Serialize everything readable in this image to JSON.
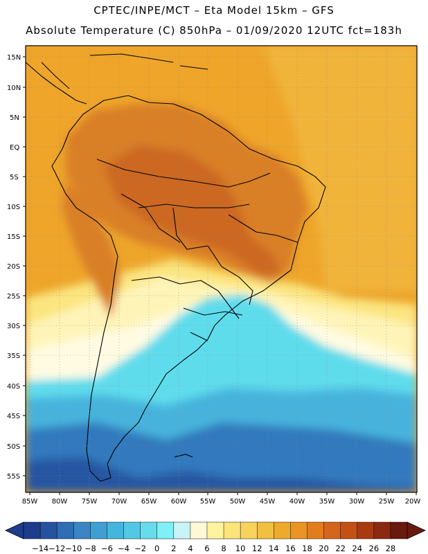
{
  "header": {
    "line1": "CPTEC/INPE/MCT –  Eta Model 15km – GFS",
    "line2": "Absolute Temperature (C) 850hPa – 01/09/2020 12UTC fct=183h"
  },
  "axes": {
    "lat_labels": [
      "15N",
      "10N",
      "5N",
      "EQ",
      "5S",
      "10S",
      "15S",
      "20S",
      "25S",
      "30S",
      "35S",
      "40S",
      "45S",
      "50S",
      "55S"
    ],
    "lon_labels": [
      "85W",
      "80W",
      "75W",
      "70W",
      "65W",
      "60W",
      "55W",
      "50W",
      "45W",
      "40W",
      "35W",
      "30W",
      "25W",
      "20W"
    ]
  },
  "colorbar": {
    "labels": [
      "-14",
      "-12",
      "-10",
      "-8",
      "-6",
      "-4",
      "-2",
      "0",
      "2",
      "4",
      "6",
      "8",
      "10",
      "12",
      "14",
      "16",
      "18",
      "20",
      "22",
      "24",
      "26",
      "28"
    ],
    "colors": [
      "#1e3c8a",
      "#2553a0",
      "#2f6db4",
      "#3a86c4",
      "#3f9fd2",
      "#44b6de",
      "#52c8e6",
      "#66dced",
      "#7ff0f6",
      "#c8f4f8",
      "#fff8d6",
      "#fff3a0",
      "#fde47a",
      "#f8d35c",
      "#f2c040",
      "#eeaa2c",
      "#eb9422",
      "#e27d1e",
      "#d5651a",
      "#c55016",
      "#a83a12",
      "#8a2a10",
      "#6a1a0c"
    ]
  },
  "map_data": {
    "lon_range": [
      -85,
      -20
    ],
    "lat_range": [
      -57,
      17
    ],
    "field": "Absolute Temperature 850hPa (C)",
    "color_scheme": {
      "tropical_warm": "#eea52a",
      "continental_hot": "#d97f26",
      "core_hot": "#cc6820",
      "mid_yellow": "#fbe57f",
      "pale_yellow": "#fff4b8",
      "cream": "#fffbe2",
      "cold_cyan": "#5fdcec",
      "cold_blue": "#47b3dc",
      "deep_blue": "#3179bd",
      "deepest_blue": "#2557a1",
      "ocean_orange": "#f1b43a"
    }
  }
}
